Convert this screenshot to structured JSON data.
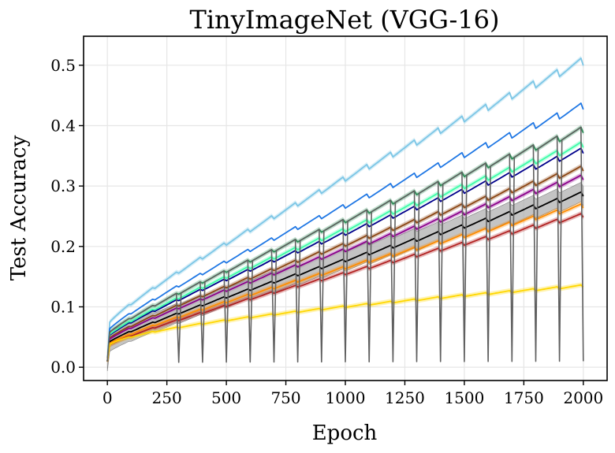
{
  "chart_data": {
    "type": "line",
    "title": "TinyImageNet (VGG-16)",
    "xlabel": "Epoch",
    "ylabel": "Test Accuracy",
    "xlim": [
      -100,
      2100
    ],
    "ylim": [
      -0.022,
      0.548
    ],
    "xticks": [
      0,
      250,
      500,
      750,
      1000,
      1250,
      1500,
      1750,
      2000
    ],
    "yticks": [
      0.0,
      0.1,
      0.2,
      0.3,
      0.4,
      0.5
    ],
    "xtick_labels": [
      "0",
      "250",
      "500",
      "750",
      "1000",
      "1250",
      "1500",
      "1750",
      "2000"
    ],
    "ytick_labels": [
      "0.0",
      "0.1",
      "0.2",
      "0.3",
      "0.4",
      "0.5"
    ],
    "grid": true,
    "legend": "none",
    "series": [
      {
        "color": "#7cc6e6",
        "final": 0.515,
        "shape": "concave",
        "band": true
      },
      {
        "color": "#1f77e4",
        "final": 0.44,
        "shape": "concave",
        "band": false
      },
      {
        "color": "#2e8b57",
        "final": 0.4,
        "shape": "concave",
        "band": true
      },
      {
        "color": "#00008b",
        "final": 0.365,
        "shape": "concave",
        "band": false
      },
      {
        "color": "#3dfca8",
        "final": 0.375,
        "shape": "concave",
        "band": true
      },
      {
        "color": "#8b4513",
        "final": 0.335,
        "shape": "concave",
        "band": true
      },
      {
        "color": "#8b008b",
        "final": 0.32,
        "shape": "concave",
        "band": true
      },
      {
        "color": "#000000",
        "final": 0.292,
        "shape": "concave",
        "band": true,
        "band_color": "#b0b0b0",
        "band_width": 0.032
      },
      {
        "color": "#ff8c00",
        "final": 0.272,
        "shape": "concave",
        "band": true
      },
      {
        "color": "#b22222",
        "final": 0.256,
        "shape": "concave",
        "band": true
      },
      {
        "color": "#ffd700",
        "final": 0.137,
        "shape": "sqrt",
        "band": true
      },
      {
        "color": "#606060",
        "final": 0.4,
        "shape": "concave",
        "band": false,
        "periodic_drop": true,
        "drop_period": 100,
        "drop_value": 0.008
      }
    ]
  }
}
